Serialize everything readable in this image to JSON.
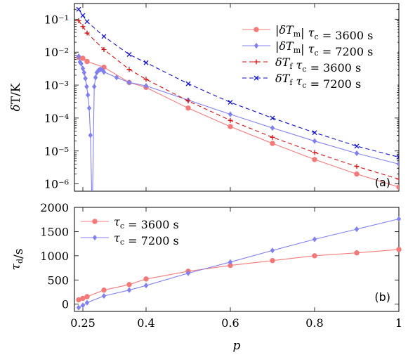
{
  "chart_data": [
    {
      "type": "line",
      "panel_label": "(a)",
      "ylabel": "δT/K",
      "yscale": "log",
      "ylim": [
        6e-07,
        0.3
      ],
      "xlim": [
        0.23,
        1.0
      ],
      "yticks": [
        {
          "v": 1e-06,
          "label": "10⁻⁶"
        },
        {
          "v": 1e-05,
          "label": "10⁻⁵"
        },
        {
          "v": 0.0001,
          "label": "10⁻⁴"
        },
        {
          "v": 0.001,
          "label": "10⁻³"
        },
        {
          "v": 0.01,
          "label": "10⁻²"
        },
        {
          "v": 0.1,
          "label": "10⁻¹"
        }
      ],
      "legend_position": "top-right",
      "series": [
        {
          "name": "|δTm| τc = 3600 s",
          "color": "#f47a7a",
          "dash": "solid",
          "marker": "circle",
          "x": [
            0.24,
            0.25,
            0.26,
            0.3,
            0.36,
            0.4,
            0.5,
            0.6,
            0.7,
            0.8,
            0.9,
            1.0
          ],
          "y": [
            0.007,
            0.0065,
            0.0052,
            0.0035,
            0.0012,
            0.00085,
            0.0002,
            5.5e-05,
            1.7e-05,
            5.5e-06,
            2e-06,
            8e-07
          ]
        },
        {
          "name": "|δTm| τc = 7200 s",
          "color": "#8080ee",
          "dash": "solid",
          "marker": "diamond",
          "x": [
            0.24,
            0.243,
            0.246,
            0.25,
            0.253,
            0.256,
            0.259,
            0.262,
            0.265,
            0.268,
            0.271,
            0.273,
            0.277,
            0.28,
            0.283,
            0.286,
            0.289,
            0.292,
            0.296,
            0.3,
            0.33,
            0.36,
            0.4,
            0.5,
            0.6,
            0.7,
            0.8,
            0.9,
            1.0
          ],
          "y": [
            0.0075,
            0.005,
            0.0045,
            0.0032,
            0.0024,
            0.0016,
            0.0009,
            0.0005,
            0.0002,
            3e-05,
            5e-07,
            5e-07,
            0.0009,
            0.0017,
            0.0024,
            0.0027,
            0.0029,
            0.003,
            0.0029,
            0.0025,
            0.0017,
            0.0012,
            0.00095,
            0.00035,
            0.00013,
            5e-05,
            2e-05,
            8.5e-06,
            4e-06
          ]
        },
        {
          "name": "δTf τc = 3600 s",
          "color": "#d11111",
          "dash": "dashed",
          "marker": "plus",
          "x": [
            0.24,
            0.25,
            0.26,
            0.3,
            0.36,
            0.4,
            0.5,
            0.6,
            0.7,
            0.8,
            0.9,
            1.0
          ],
          "y": [
            0.09,
            0.06,
            0.038,
            0.012,
            0.003,
            0.0015,
            0.00033,
            8.5e-05,
            2.6e-05,
            9e-06,
            3.4e-06,
            1.4e-06
          ]
        },
        {
          "name": "δTf τc = 7200 s",
          "color": "#1111c8",
          "dash": "dashed",
          "marker": "cross",
          "x": [
            0.24,
            0.25,
            0.26,
            0.3,
            0.36,
            0.4,
            0.5,
            0.6,
            0.7,
            0.8,
            0.9,
            1.0
          ],
          "y": [
            0.2,
            0.13,
            0.085,
            0.03,
            0.0085,
            0.0048,
            0.0011,
            0.0003,
            0.0001,
            3.6e-05,
            1.4e-05,
            6.5e-06
          ]
        }
      ]
    },
    {
      "type": "line",
      "panel_label": "(b)",
      "xlabel": "p",
      "ylabel": "τd/s",
      "xlim": [
        0.23,
        1.0
      ],
      "ylim": [
        -150,
        2000
      ],
      "yticks": [
        0,
        500,
        1000,
        1500,
        2000
      ],
      "xticks": [
        {
          "v": 0.25,
          "label": "0.25"
        },
        {
          "v": 0.4,
          "label": "0.4"
        },
        {
          "v": 0.6,
          "label": "0.6"
        },
        {
          "v": 0.8,
          "label": "0.8"
        },
        {
          "v": 1.0,
          "label": "1"
        }
      ],
      "legend_position": "top-left",
      "series": [
        {
          "name": "τc = 3600 s",
          "color": "#f47a7a",
          "marker": "circle",
          "x": [
            0.24,
            0.25,
            0.26,
            0.3,
            0.36,
            0.4,
            0.5,
            0.6,
            0.7,
            0.8,
            0.9,
            1.0
          ],
          "y": [
            90,
            120,
            155,
            290,
            405,
            520,
            680,
            800,
            900,
            1000,
            1060,
            1130
          ]
        },
        {
          "name": "τc = 7200 s",
          "color": "#8080ee",
          "marker": "diamond",
          "x": [
            0.24,
            0.25,
            0.26,
            0.3,
            0.36,
            0.4,
            0.5,
            0.6,
            0.7,
            0.8,
            0.9,
            1.0
          ],
          "y": [
            -70,
            -25,
            30,
            170,
            290,
            385,
            640,
            870,
            1110,
            1340,
            1550,
            1760
          ]
        }
      ]
    }
  ]
}
